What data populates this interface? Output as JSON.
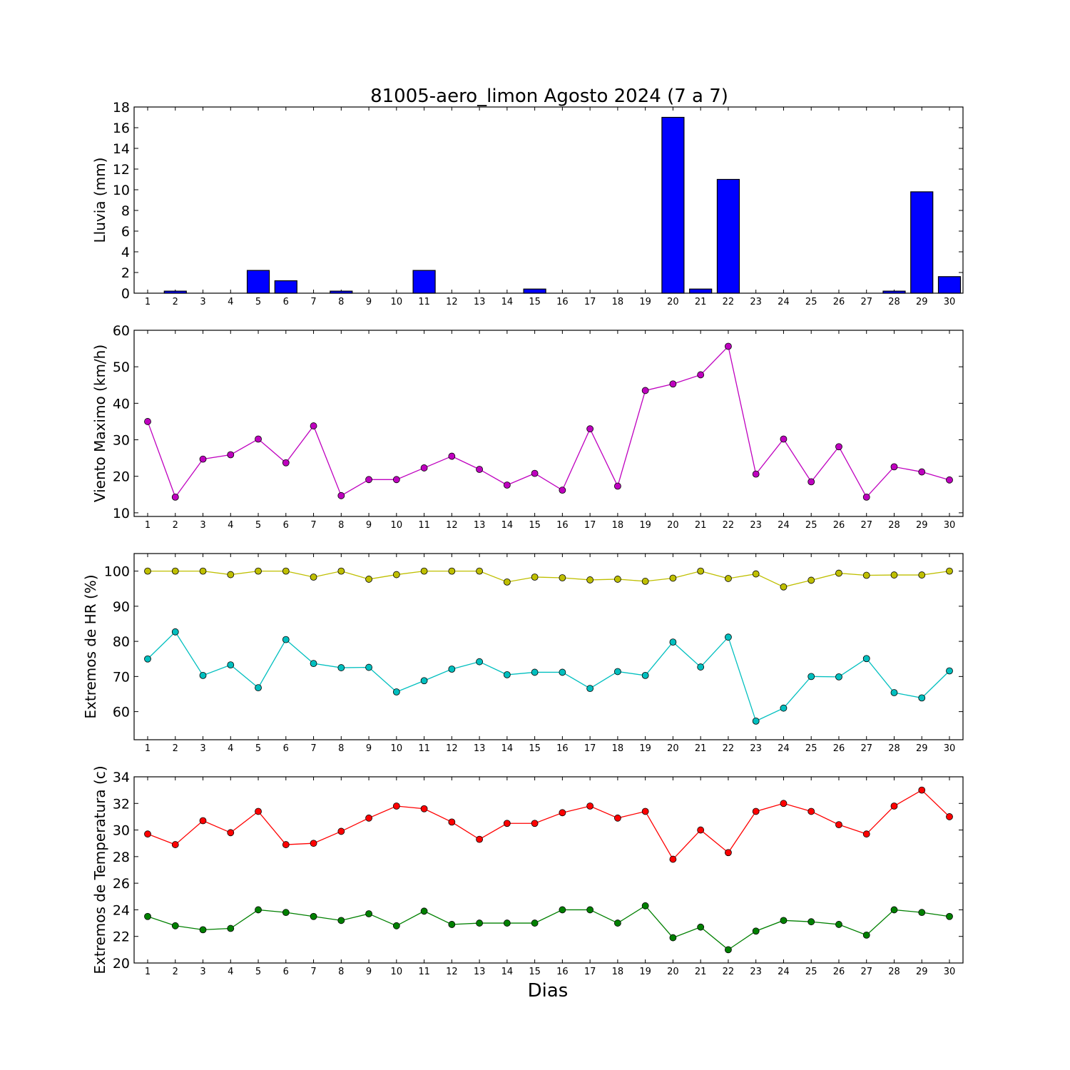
{
  "figure": {
    "title": "81005-aero_limon Agosto 2024  (7 a 7)",
    "xlabel": "Dias"
  },
  "chart_data": [
    {
      "type": "bar",
      "title": "81005-aero_limon Agosto 2024  (7 a 7)",
      "ylabel": "Lluvia (mm)",
      "ylim": [
        0,
        18
      ],
      "yticks": [
        0,
        2,
        4,
        6,
        8,
        10,
        12,
        14,
        16,
        18
      ],
      "categories": [
        1,
        2,
        3,
        4,
        5,
        6,
        7,
        8,
        9,
        10,
        11,
        12,
        13,
        14,
        15,
        16,
        17,
        18,
        19,
        20,
        21,
        22,
        23,
        24,
        25,
        26,
        27,
        28,
        29,
        30
      ],
      "values": [
        0,
        0.2,
        0,
        0,
        2.2,
        1.2,
        0,
        0.2,
        0,
        0,
        2.2,
        0,
        0,
        0,
        0.4,
        0,
        0,
        0,
        0,
        17.0,
        0.4,
        11.0,
        0,
        0,
        0,
        0,
        0,
        0.2,
        9.8,
        1.6
      ],
      "color": "#0000ff"
    },
    {
      "type": "line",
      "ylabel": "Viento Maximo (km/h)",
      "ylim": [
        9,
        60
      ],
      "yticks": [
        10,
        20,
        30,
        40,
        50,
        60
      ],
      "x": [
        1,
        2,
        3,
        4,
        5,
        6,
        7,
        8,
        9,
        10,
        11,
        12,
        13,
        14,
        15,
        16,
        17,
        18,
        19,
        20,
        21,
        22,
        23,
        24,
        25,
        26,
        27,
        28,
        29,
        30
      ],
      "series": [
        {
          "values": [
            35,
            14.3,
            24.7,
            25.9,
            30.2,
            23.7,
            33.8,
            14.7,
            19.1,
            19.1,
            22.3,
            25.5,
            21.9,
            17.6,
            20.8,
            16.2,
            33.0,
            17.3,
            43.5,
            45.3,
            47.8,
            55.6,
            20.6,
            30.2,
            18.5,
            28.1,
            14.3,
            22.6,
            21.2,
            19.0
          ],
          "color": "#bf00bf"
        }
      ]
    },
    {
      "type": "line",
      "ylabel": "Extremos de HR (%)",
      "ylim": [
        52,
        105
      ],
      "yticks": [
        60,
        70,
        80,
        90,
        100
      ],
      "x": [
        1,
        2,
        3,
        4,
        5,
        6,
        7,
        8,
        9,
        10,
        11,
        12,
        13,
        14,
        15,
        16,
        17,
        18,
        19,
        20,
        21,
        22,
        23,
        24,
        25,
        26,
        27,
        28,
        29,
        30
      ],
      "series": [
        {
          "values": [
            100,
            100,
            100,
            99,
            100,
            100,
            98.3,
            100,
            97.7,
            99,
            100,
            100,
            100,
            96.9,
            98.3,
            98.1,
            97.5,
            97.7,
            97.1,
            98,
            100,
            97.9,
            99.2,
            95.5,
            97.4,
            99.4,
            98.8,
            98.9,
            98.9,
            100
          ],
          "color": "#bfbf00"
        },
        {
          "values": [
            75,
            82.7,
            70.3,
            73.3,
            66.8,
            80.5,
            73.7,
            72.5,
            72.6,
            65.6,
            68.8,
            72.1,
            74.2,
            70.5,
            71.2,
            71.2,
            66.6,
            71.4,
            70.3,
            79.8,
            72.7,
            81.2,
            57.3,
            61.0,
            70.0,
            69.9,
            75.1,
            65.4,
            63.9,
            71.6
          ],
          "color": "#00bfbf"
        }
      ]
    },
    {
      "type": "line",
      "ylabel": "Extremos de Temperatura (c)",
      "ylim": [
        20,
        34
      ],
      "yticks": [
        20,
        22,
        24,
        26,
        28,
        30,
        32,
        34
      ],
      "x": [
        1,
        2,
        3,
        4,
        5,
        6,
        7,
        8,
        9,
        10,
        11,
        12,
        13,
        14,
        15,
        16,
        17,
        18,
        19,
        20,
        21,
        22,
        23,
        24,
        25,
        26,
        27,
        28,
        29,
        30
      ],
      "series": [
        {
          "values": [
            29.7,
            28.9,
            30.7,
            29.8,
            31.4,
            28.9,
            29.0,
            29.9,
            30.9,
            31.8,
            31.6,
            30.6,
            29.3,
            30.5,
            30.5,
            31.3,
            31.8,
            30.9,
            31.4,
            27.8,
            30.0,
            28.3,
            31.4,
            32.0,
            31.4,
            30.4,
            29.7,
            31.8,
            33.0,
            31.0
          ],
          "color": "#ff0000"
        },
        {
          "values": [
            23.5,
            22.8,
            22.5,
            22.6,
            24.0,
            23.8,
            23.5,
            23.2,
            23.7,
            22.8,
            23.9,
            22.9,
            23.0,
            23.0,
            23.0,
            24.0,
            24.0,
            23.0,
            24.3,
            21.9,
            22.7,
            21.0,
            22.4,
            23.2,
            23.1,
            22.9,
            22.1,
            24.0,
            23.8,
            23.5
          ],
          "color": "#008000"
        }
      ]
    }
  ]
}
